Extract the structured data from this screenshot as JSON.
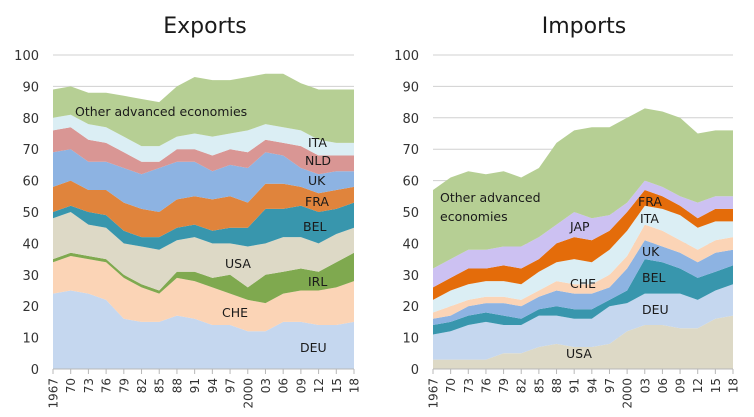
{
  "chart_data": [
    {
      "type": "area",
      "stacked": true,
      "title": "Exports",
      "xlabel": "",
      "ylabel": "",
      "ylim": [
        0,
        100
      ],
      "yticks": [
        "0",
        "10",
        "20",
        "30",
        "40",
        "50",
        "60",
        "70",
        "80",
        "90",
        "100"
      ],
      "x": [
        1967,
        1970,
        1973,
        1976,
        1979,
        1982,
        1985,
        1988,
        1991,
        1994,
        1997,
        2000,
        2003,
        2006,
        2009,
        2012,
        2015,
        2018
      ],
      "xticks": [
        "1967",
        "70",
        "73",
        "76",
        "79",
        "82",
        "85",
        "88",
        "91",
        "94",
        "97",
        "2000",
        "03",
        "06",
        "09",
        "12",
        "15",
        "18"
      ],
      "grid": true,
      "series": [
        {
          "name": "DEU",
          "label": "DEU",
          "color": "#c5d7ef",
          "values": [
            24,
            25,
            24,
            22,
            16,
            15,
            15,
            17,
            16,
            14,
            14,
            12,
            12,
            15,
            15,
            14,
            14,
            15
          ]
        },
        {
          "name": "CHE",
          "label": "CHE",
          "color": "#fbd4b6",
          "values": [
            10,
            11,
            11,
            12,
            13,
            11,
            9,
            12,
            12,
            12,
            10,
            10,
            9,
            9,
            10,
            11,
            12,
            13
          ]
        },
        {
          "name": "IRL",
          "label": "IRL",
          "color": "#7fa94f",
          "values": [
            1,
            1,
            1,
            1,
            1,
            1,
            1,
            2,
            3,
            3,
            6,
            4,
            9,
            7,
            7,
            6,
            8,
            9
          ]
        },
        {
          "name": "USA",
          "label": "USA",
          "color": "#ddd9c6",
          "values": [
            13,
            13,
            10,
            10,
            10,
            12,
            13,
            10,
            11,
            11,
            10,
            13,
            10,
            11,
            10,
            9,
            9,
            8
          ]
        },
        {
          "name": "BEL",
          "label": "BEL",
          "color": "#3896ad",
          "values": [
            2,
            2,
            4,
            4,
            4,
            3,
            4,
            4,
            4,
            4,
            5,
            6,
            11,
            9,
            10,
            10,
            8,
            8
          ]
        },
        {
          "name": "FRA",
          "label": "FRA",
          "color": "#e0843c",
          "values": [
            8,
            8,
            7,
            8,
            9,
            9,
            8,
            9,
            9,
            10,
            10,
            8,
            8,
            8,
            6,
            6,
            6,
            5
          ]
        },
        {
          "name": "UK",
          "label": "UK",
          "color": "#8db3e2",
          "values": [
            11,
            10,
            9,
            9,
            11,
            11,
            14,
            12,
            11,
            9,
            10,
            11,
            10,
            9,
            6,
            6,
            6,
            5
          ]
        },
        {
          "name": "NLD",
          "label": "NLD",
          "color": "#d99694",
          "values": [
            7,
            7,
            7,
            6,
            5,
            4,
            2,
            4,
            4,
            5,
            5,
            5,
            4,
            4,
            7,
            6,
            5,
            5
          ]
        },
        {
          "name": "ITA",
          "label": "ITA",
          "color": "#dbeef4",
          "values": [
            4,
            4,
            5,
            5,
            5,
            5,
            5,
            4,
            5,
            6,
            5,
            7,
            5,
            5,
            5,
            5,
            4,
            4
          ]
        },
        {
          "name": "Other advanced economies",
          "label": "Other advanced economies",
          "color": "#b6cf94",
          "values": [
            9,
            9,
            10,
            11,
            13,
            15,
            14,
            16,
            18,
            18,
            17,
            17,
            16,
            17,
            15,
            16,
            17,
            17
          ]
        }
      ]
    },
    {
      "type": "area",
      "stacked": true,
      "title": "Imports",
      "xlabel": "",
      "ylabel": "",
      "ylim": [
        0,
        100
      ],
      "yticks": [
        "0",
        "10",
        "20",
        "30",
        "40",
        "50",
        "60",
        "70",
        "80",
        "90",
        "100"
      ],
      "x": [
        1967,
        1970,
        1973,
        1976,
        1979,
        1982,
        1985,
        1988,
        1991,
        1994,
        1997,
        2000,
        2003,
        2006,
        2009,
        2012,
        2015,
        2018
      ],
      "xticks": [
        "1967",
        "70",
        "73",
        "76",
        "79",
        "82",
        "85",
        "88",
        "91",
        "94",
        "97",
        "2000",
        "03",
        "06",
        "09",
        "12",
        "15",
        "18"
      ],
      "grid": true,
      "series": [
        {
          "name": "USA",
          "label": "USA",
          "color": "#ddd9c6",
          "values": [
            3,
            3,
            3,
            3,
            5,
            5,
            7,
            8,
            7,
            7,
            8,
            12,
            14,
            14,
            13,
            13,
            16,
            17
          ]
        },
        {
          "name": "DEU",
          "label": "DEU",
          "color": "#c5d7ef",
          "values": [
            8,
            9,
            11,
            12,
            9,
            9,
            10,
            9,
            9,
            9,
            12,
            9,
            10,
            10,
            11,
            9,
            9,
            10
          ]
        },
        {
          "name": "BEL",
          "label": "BEL",
          "color": "#3896ad",
          "values": [
            3,
            3,
            3,
            3,
            3,
            2,
            2,
            3,
            3,
            3,
            2,
            4,
            11,
            10,
            8,
            7,
            6,
            6
          ]
        },
        {
          "name": "UK",
          "label": "UK",
          "color": "#8db3e2",
          "values": [
            2,
            2,
            3,
            3,
            4,
            4,
            4,
            5,
            5,
            5,
            4,
            7,
            6,
            5,
            5,
            5,
            6,
            5
          ]
        },
        {
          "name": "CHE",
          "label": "CHE",
          "color": "#fbd4b6",
          "values": [
            2,
            3,
            2,
            2,
            2,
            2,
            2,
            3,
            3,
            3,
            4,
            4,
            5,
            5,
            4,
            4,
            4,
            4
          ]
        },
        {
          "name": "ITA",
          "label": "ITA",
          "color": "#dbeef4",
          "values": [
            4,
            5,
            5,
            5,
            5,
            5,
            6,
            6,
            8,
            7,
            8,
            8,
            6,
            7,
            8,
            7,
            6,
            5
          ]
        },
        {
          "name": "FRA",
          "label": "FRA",
          "color": "#e46c0a",
          "values": [
            4,
            4,
            5,
            4,
            5,
            5,
            4,
            6,
            7,
            7,
            6,
            6,
            5,
            4,
            3,
            3,
            4,
            4
          ]
        },
        {
          "name": "JAP",
          "label": "JAP",
          "color": "#ccc1f2",
          "values": [
            6,
            6,
            6,
            6,
            6,
            7,
            7,
            6,
            8,
            7,
            5,
            3,
            3,
            3,
            3,
            5,
            4,
            4
          ]
        },
        {
          "name": "Other advanced economies",
          "label": "Other advanced economies",
          "color": "#b6cf94",
          "values": [
            25,
            26,
            25,
            24,
            24,
            22,
            22,
            26,
            26,
            29,
            28,
            27,
            23,
            24,
            25,
            22,
            21,
            21
          ]
        }
      ]
    }
  ]
}
